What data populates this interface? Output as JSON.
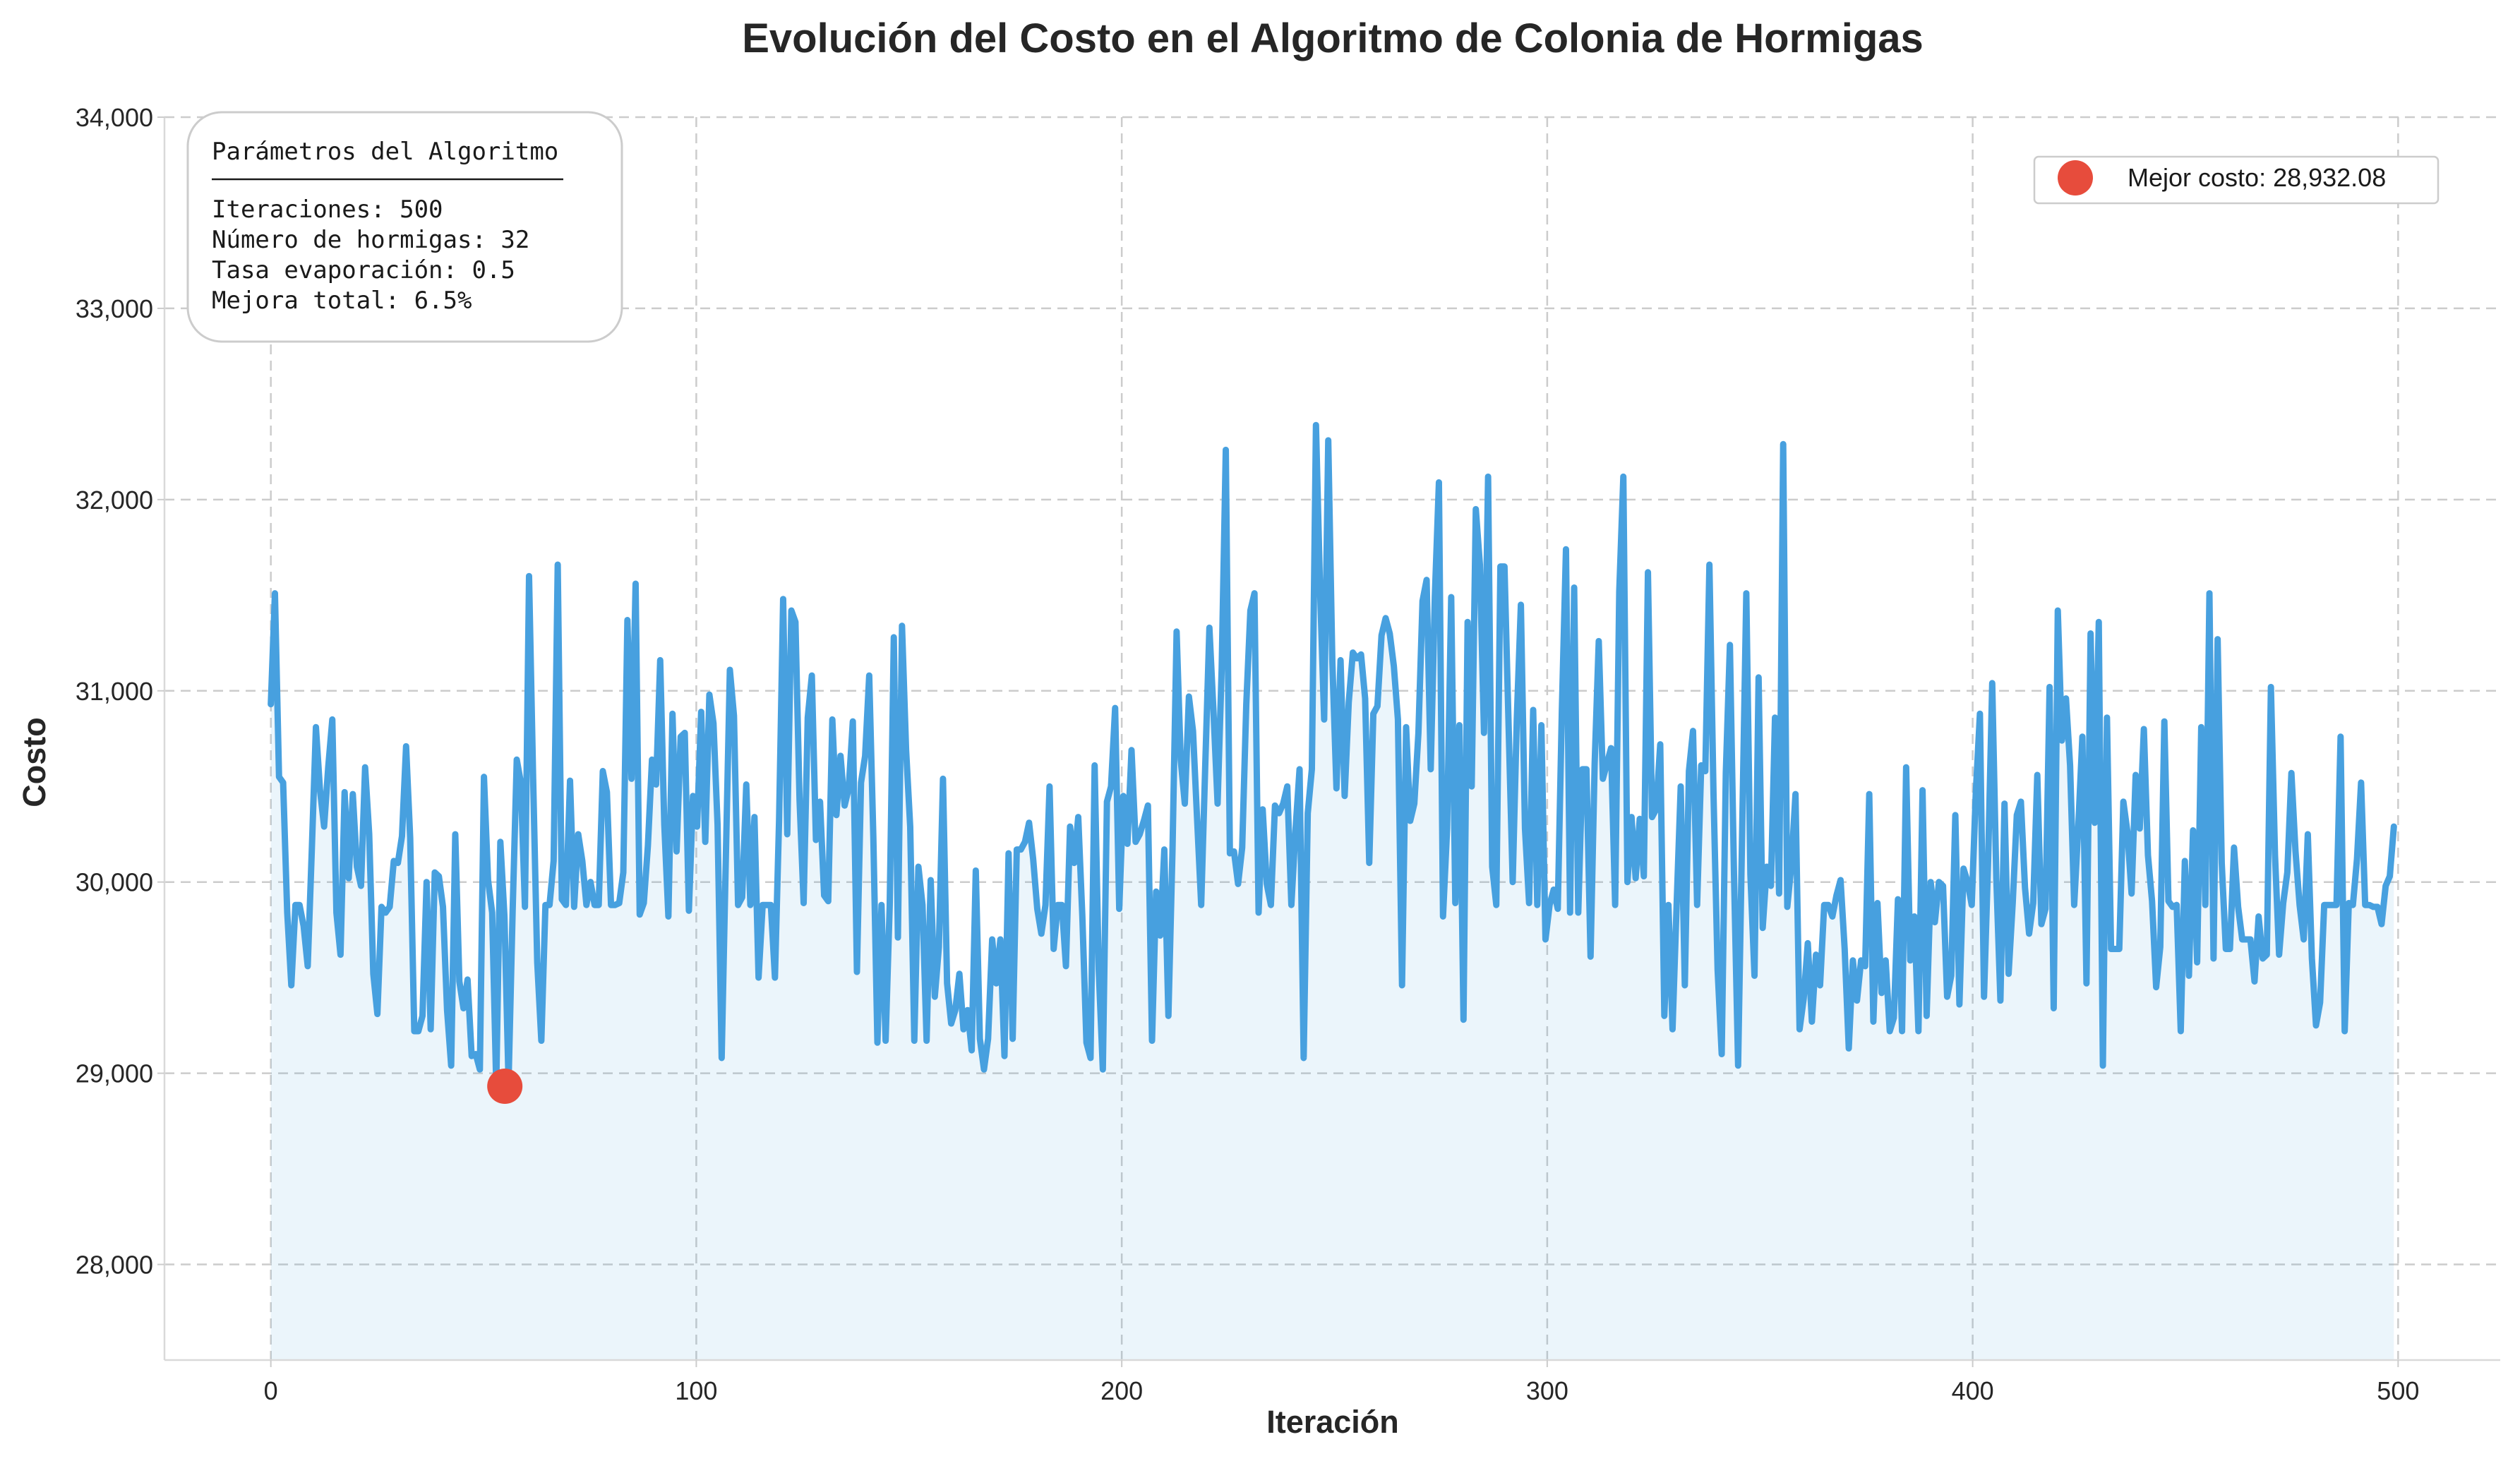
{
  "chart_data": {
    "type": "line",
    "title": "Evolución del Costo en el Algoritmo de Colonia de Hormigas",
    "xlabel": "Iteración",
    "ylabel": "Costo",
    "xlim": [
      -25,
      524
    ],
    "ylim": [
      27500,
      34000
    ],
    "x_ticks": [
      0,
      100,
      200,
      300,
      400,
      500
    ],
    "x_tick_labels": [
      "0",
      "100",
      "200",
      "300",
      "400",
      "500"
    ],
    "y_ticks": [
      28000,
      29000,
      30000,
      31000,
      32000,
      33000,
      34000
    ],
    "y_tick_labels": [
      "28,000",
      "29,000",
      "30,000",
      "31,000",
      "32,000",
      "33,000",
      "34,000"
    ],
    "grid": true,
    "line_color": "#47a0df",
    "fill_under": true,
    "marker_color": "#e74c3c",
    "legend_position": "top-right",
    "x_start": 0,
    "x_end": 499,
    "series": [
      {
        "values": [
          30930,
          31510,
          30550,
          30520,
          29840,
          29460,
          29880,
          29880,
          29770,
          29560,
          30170,
          30810,
          30480,
          30290,
          30600,
          30850,
          29840,
          29620,
          30470,
          30020,
          30460,
          30080,
          29980,
          30600,
          30250,
          29520,
          29310,
          29870,
          29840,
          29870,
          30110,
          30100,
          30240,
          30710,
          30230,
          29220,
          29220,
          29300,
          30000,
          29230,
          30050,
          30030,
          29870,
          29330,
          29040,
          30250,
          29480,
          29340,
          29490,
          29090,
          29100,
          29020,
          30550,
          30010,
          29840,
          28932,
          30210,
          29820,
          28950,
          29850,
          30640,
          30520,
          29870,
          31600,
          30540,
          29580,
          29170,
          29880,
          29880,
          30110,
          31660,
          29910,
          29880,
          30530,
          29870,
          30250,
          30110,
          29880,
          30000,
          29880,
          29880,
          30580,
          30470,
          29880,
          29880,
          29890,
          30050,
          31370,
          30540,
          31560,
          29830,
          29890,
          30190,
          30640,
          30510,
          31160,
          30300,
          29820,
          30880,
          30160,
          30760,
          30780,
          29850,
          30450,
          30290,
          30890,
          30210,
          30980,
          30830,
          30300,
          29080,
          30110,
          31110,
          30870,
          29880,
          29920,
          30510,
          29880,
          30340,
          29500,
          29880,
          29880,
          29880,
          29500,
          30320,
          31480,
          30250,
          31420,
          31360,
          30430,
          29890,
          30860,
          31080,
          30220,
          30420,
          29930,
          29900,
          30850,
          30350,
          30660,
          30400,
          30490,
          30840,
          29530,
          30520,
          30660,
          31080,
          30240,
          29160,
          29880,
          29170,
          29880,
          31280,
          29710,
          31340,
          30690,
          30290,
          29170,
          30080,
          29880,
          29170,
          30010,
          29400,
          29660,
          30540,
          29470,
          29260,
          29330,
          29520,
          29230,
          29330,
          29120,
          30060,
          29180,
          29020,
          29180,
          29700,
          29470,
          29700,
          29090,
          30150,
          29180,
          30170,
          30170,
          30210,
          30310,
          30120,
          29860,
          29730,
          29880,
          30500,
          29650,
          29880,
          29880,
          29560,
          30290,
          30100,
          30340,
          29820,
          29160,
          29080,
          30610,
          29540,
          29020,
          30420,
          30500,
          30910,
          29860,
          30450,
          30200,
          30690,
          30210,
          30250,
          30320,
          30400,
          29170,
          29950,
          29720,
          30170,
          29300,
          30170,
          31310,
          30640,
          30410,
          30970,
          30790,
          30330,
          29880,
          30620,
          31330,
          30890,
          30410,
          31120,
          32260,
          30150,
          30160,
          29990,
          30180,
          30930,
          31420,
          31510,
          29840,
          30380,
          29990,
          29880,
          30400,
          30360,
          30410,
          30500,
          29880,
          30270,
          30590,
          29080,
          30360,
          30590,
          32390,
          31530,
          30850,
          32310,
          31150,
          30490,
          31160,
          30450,
          30940,
          31200,
          31170,
          31190,
          30960,
          30100,
          30880,
          30920,
          31290,
          31380,
          31300,
          31130,
          30850,
          29460,
          30810,
          30320,
          30410,
          30780,
          31470,
          31580,
          30590,
          31490,
          32090,
          29820,
          30280,
          31490,
          29890,
          30820,
          29280,
          31360,
          30500,
          31950,
          31660,
          30780,
          32120,
          30080,
          29880,
          31650,
          31650,
          30820,
          30000,
          30850,
          31450,
          30280,
          29890,
          30900,
          29880,
          30820,
          29700,
          29880,
          29960,
          29860,
          30900,
          31740,
          29840,
          31540,
          29840,
          30590,
          30590,
          29610,
          30620,
          31260,
          30540,
          30620,
          30700,
          29880,
          31520,
          32120,
          30000,
          30340,
          30020,
          30330,
          30030,
          31620,
          30340,
          30380,
          30720,
          29300,
          29880,
          29230,
          29880,
          30500,
          29460,
          30580,
          30790,
          29880,
          30610,
          30580,
          31660,
          30460,
          29540,
          29100,
          30570,
          31240,
          30040,
          29040,
          30280,
          31510,
          30040,
          29510,
          31070,
          29760,
          30080,
          29980,
          30860,
          29940,
          32290,
          29870,
          30090,
          30460,
          29230,
          29390,
          29680,
          29270,
          29620,
          29460,
          29880,
          29880,
          29820,
          29930,
          30010,
          29650,
          29130,
          29590,
          29380,
          29590,
          29560,
          30460,
          29270,
          29890,
          29420,
          29590,
          29220,
          29290,
          29910,
          29220,
          30600,
          29590,
          29820,
          29220,
          30480,
          29300,
          30000,
          29790,
          30000,
          29980,
          29400,
          29510,
          30350,
          29360,
          30070,
          30000,
          29880,
          30470,
          30880,
          29400,
          30110,
          31040,
          30020,
          29380,
          30410,
          29520,
          29890,
          30350,
          30420,
          29970,
          29730,
          29890,
          30560,
          29780,
          29860,
          31020,
          29340,
          31420,
          30740,
          30960,
          30610,
          29880,
          30290,
          30760,
          29470,
          31300,
          30310,
          31360,
          29040,
          30860,
          29650,
          29650,
          29650,
          30420,
          30260,
          29940,
          30560,
          30280,
          30800,
          30140,
          29900,
          29450,
          29660,
          30840,
          29900,
          29870,
          29880,
          29220,
          30110,
          29510,
          30270,
          29580,
          30810,
          29880,
          31510,
          29600,
          31270,
          30100,
          29650,
          29650,
          30180,
          29870,
          29700,
          29700,
          29700,
          29480,
          29820,
          29600,
          29620,
          31020,
          30140,
          29620,
          29890,
          30050,
          30570,
          30160,
          29880,
          29700,
          30250,
          29600,
          29250,
          29370,
          29880,
          29880,
          29880,
          29880,
          30760,
          29220,
          29890,
          29880,
          30120,
          30520,
          29880,
          29880,
          29870,
          29870,
          29780,
          29980,
          30030,
          30290
        ]
      }
    ],
    "best_point": {
      "x": 55,
      "y": 28932.08
    }
  },
  "legend": {
    "best_label": "Mejor costo: 28,932.08"
  },
  "params_box": {
    "heading": "Parámetros del Algoritmo",
    "lines": [
      "Iteraciones: 500",
      "Número de hormigas: 32",
      "Tasa evaporación: 0.5",
      "Mejora total: 6.5%"
    ]
  }
}
